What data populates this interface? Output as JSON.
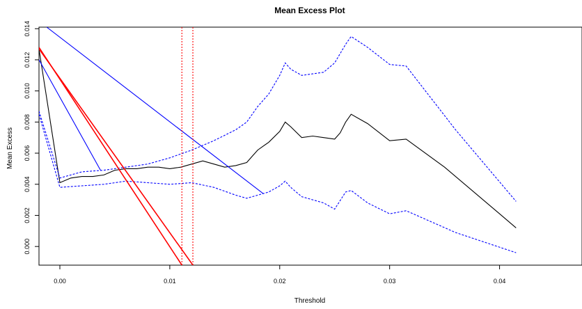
{
  "chart_data": {
    "type": "line",
    "title": "Mean Excess Plot",
    "xlabel": "Threshold",
    "ylabel": "Mean Excess",
    "xlim": [
      -0.0019,
      0.0475
    ],
    "ylim": [
      -0.0012,
      0.0141
    ],
    "x_ticks": [
      0.0,
      0.01,
      0.02,
      0.03,
      0.04
    ],
    "x_tick_labels": [
      "0.00",
      "0.01",
      "0.02",
      "0.03",
      "0.04"
    ],
    "y_ticks": [
      0.0,
      0.002,
      0.004,
      0.006,
      0.008,
      0.01,
      0.012,
      0.014
    ],
    "y_tick_labels": [
      "0.000",
      "0.002",
      "0.004",
      "0.006",
      "0.008",
      "0.010",
      "0.012",
      "0.014"
    ],
    "grid": false,
    "legend": "none",
    "colors": {
      "mean_excess": "#000000",
      "ci": "#0000ff",
      "fit": "#ff0000",
      "threshold_marker": "#ff0000"
    },
    "series": [
      {
        "style": "solid",
        "color": "#000000",
        "x": [
          -0.0019,
          0.0,
          0.001,
          0.002,
          0.003,
          0.004,
          0.005,
          0.006,
          0.007,
          0.008,
          0.009,
          0.01,
          0.011,
          0.012,
          0.013,
          0.014,
          0.015,
          0.016,
          0.017,
          0.0175,
          0.018,
          0.019,
          0.02,
          0.0205,
          0.021,
          0.022,
          0.023,
          0.024,
          0.025,
          0.0255,
          0.026,
          0.0265,
          0.028,
          0.03,
          0.0315,
          0.035,
          0.04,
          0.0415
        ],
        "y": [
          0.0127,
          0.0041,
          0.0044,
          0.0045,
          0.0045,
          0.0046,
          0.0049,
          0.005,
          0.005,
          0.0051,
          0.0051,
          0.005,
          0.0051,
          0.0053,
          0.0055,
          0.0053,
          0.0051,
          0.0052,
          0.0054,
          0.0058,
          0.0062,
          0.0067,
          0.0074,
          0.008,
          0.0077,
          0.007,
          0.0071,
          0.007,
          0.0069,
          0.0073,
          0.008,
          0.0085,
          0.0079,
          0.0068,
          0.0069,
          0.0051,
          0.0021,
          0.0012
        ]
      },
      {
        "style": "dashed",
        "color": "#0000ff",
        "x": [
          -0.0019,
          0.0,
          0.002,
          0.004,
          0.006,
          0.008,
          0.01,
          0.012,
          0.014,
          0.016,
          0.017,
          0.018,
          0.019,
          0.02,
          0.0205,
          0.021,
          0.022,
          0.023,
          0.024,
          0.025,
          0.026,
          0.0265,
          0.028,
          0.03,
          0.0315,
          0.036,
          0.0415
        ],
        "y": [
          0.0087,
          0.0044,
          0.0048,
          0.0049,
          0.0051,
          0.0053,
          0.0057,
          0.0062,
          0.0068,
          0.0075,
          0.008,
          0.009,
          0.0098,
          0.011,
          0.0118,
          0.0114,
          0.011,
          0.0111,
          0.0112,
          0.0118,
          0.013,
          0.0135,
          0.0128,
          0.0117,
          0.0116,
          0.0075,
          0.0029
        ]
      },
      {
        "style": "dashed",
        "color": "#0000ff",
        "x": [
          -0.0019,
          0.0,
          0.002,
          0.004,
          0.006,
          0.008,
          0.01,
          0.012,
          0.014,
          0.016,
          0.017,
          0.018,
          0.019,
          0.02,
          0.0205,
          0.021,
          0.022,
          0.023,
          0.024,
          0.025,
          0.026,
          0.0265,
          0.028,
          0.03,
          0.0315,
          0.036,
          0.0415
        ],
        "y": [
          0.0085,
          0.0038,
          0.0039,
          0.004,
          0.0042,
          0.0041,
          0.004,
          0.0041,
          0.0038,
          0.0033,
          0.0031,
          0.0033,
          0.0035,
          0.0039,
          0.0042,
          0.0038,
          0.0032,
          0.003,
          0.0028,
          0.0024,
          0.0035,
          0.0036,
          0.0028,
          0.0021,
          0.0023,
          0.0009,
          -0.0004
        ]
      },
      {
        "style": "solid",
        "color": "#0000ff",
        "x": [
          -0.0012,
          0.0185
        ],
        "y": [
          0.0141,
          0.0034
        ]
      },
      {
        "style": "solid",
        "color": "#0000ff",
        "x": [
          -0.0019,
          0.0037
        ],
        "y": [
          0.012,
          0.0049
        ]
      },
      {
        "style": "solid",
        "color": "#ff0000",
        "x": [
          -0.0019,
          0.0111
        ],
        "y": [
          0.0128,
          -0.0012
        ]
      },
      {
        "style": "solid",
        "color": "#ff0000",
        "x": [
          -0.0019,
          0.0121
        ],
        "y": [
          0.0127,
          -0.0012
        ]
      }
    ],
    "vlines": [
      {
        "x": 0.0111,
        "style": "dotted",
        "color": "#ff0000"
      },
      {
        "x": 0.0121,
        "style": "dotted",
        "color": "#ff0000"
      }
    ]
  }
}
